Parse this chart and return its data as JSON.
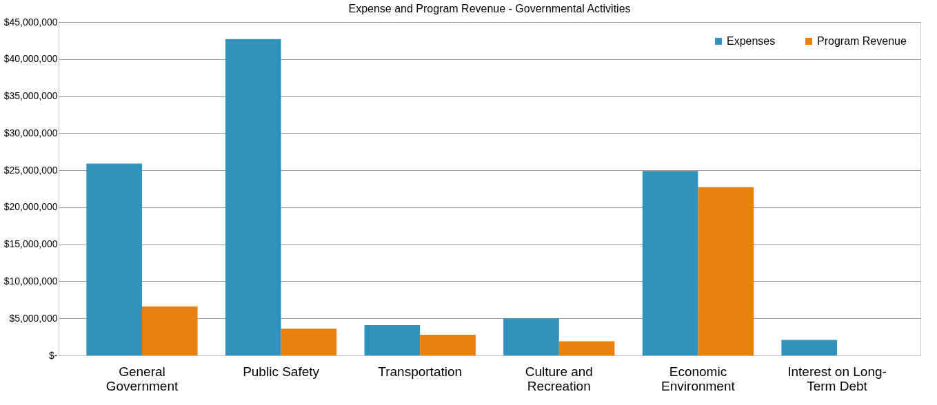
{
  "chart_data": {
    "type": "bar",
    "title": "Expense and Program Revenue - Governmental Activities",
    "categories": [
      "General Government",
      "Public Safety",
      "Transportation",
      "Culture and Recreation",
      "Economic Environment",
      "Interest on Long-Term Debt"
    ],
    "series": [
      {
        "name": "Expenses",
        "color": "#2f93bd",
        "values": [
          25900000,
          42700000,
          4100000,
          5000000,
          24900000,
          2100000
        ]
      },
      {
        "name": "Program Revenue",
        "color": "#e8800f",
        "values": [
          6600000,
          3600000,
          2800000,
          1900000,
          22700000,
          null
        ]
      }
    ],
    "ylim": [
      0,
      45000000
    ],
    "yticks": [
      {
        "value": 0,
        "label": "$-"
      },
      {
        "value": 5000000,
        "label": "$5,000,000"
      },
      {
        "value": 10000000,
        "label": "$10,000,000"
      },
      {
        "value": 15000000,
        "label": "$15,000,000"
      },
      {
        "value": 20000000,
        "label": "$20,000,000"
      },
      {
        "value": 25000000,
        "label": "$25,000,000"
      },
      {
        "value": 30000000,
        "label": "$30,000,000"
      },
      {
        "value": 35000000,
        "label": "$35,000,000"
      },
      {
        "value": 40000000,
        "label": "$40,000,000"
      },
      {
        "value": 45000000,
        "label": "$45,000,000"
      }
    ],
    "grid": "y",
    "legend": "top right"
  }
}
